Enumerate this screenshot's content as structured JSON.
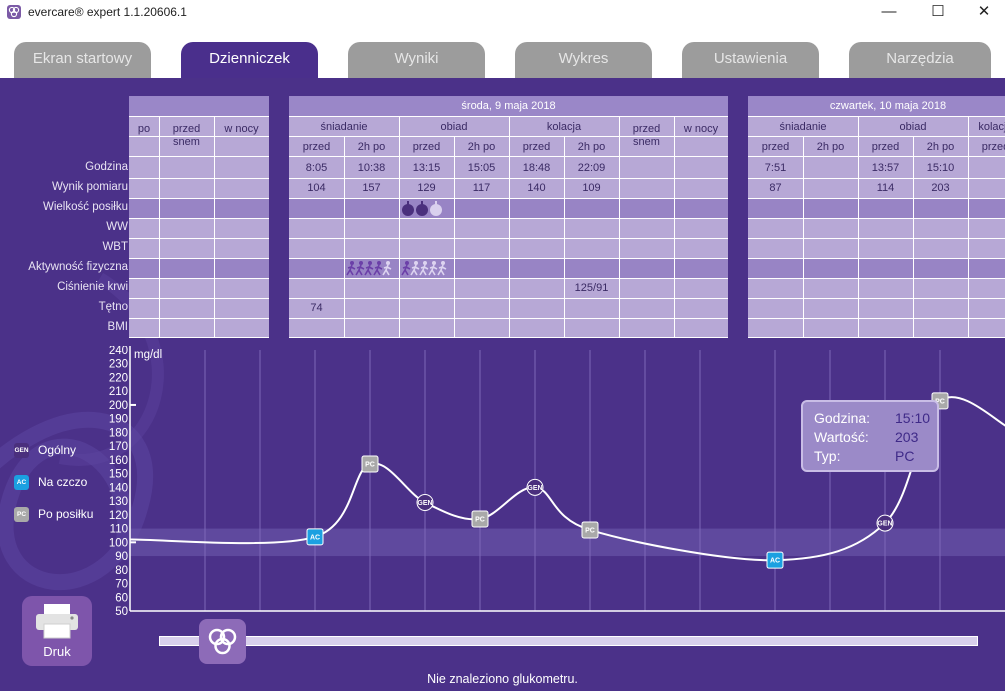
{
  "window": {
    "title": "evercare® expert 1.1.20606.1",
    "minimize_glyph": "—",
    "maximize_glyph": "☐",
    "close_glyph": "✕"
  },
  "tabs": [
    {
      "label": "Ekran startowy",
      "active": false
    },
    {
      "label": "Dzienniczek",
      "active": true
    },
    {
      "label": "Wyniki",
      "active": false
    },
    {
      "label": "Wykres",
      "active": false
    },
    {
      "label": "Ustawienia",
      "active": false
    },
    {
      "label": "Narzędzia",
      "active": false
    }
  ],
  "row_labels": [
    "Godzina",
    "Wynik pomiaru",
    "Wielkość posiłku",
    "WW",
    "WBT",
    "Aktywność fizyczna",
    "Ciśnienie krwi",
    "Tętno",
    "BMI"
  ],
  "days": [
    {
      "date": "",
      "columns": [
        {
          "group": "",
          "sub": "po"
        },
        {
          "group": "",
          "sub": "przed snem"
        },
        {
          "group": "",
          "sub": "w nocy"
        }
      ],
      "godzina": [
        "",
        "",
        ""
      ],
      "wynik": [
        "",
        "",
        ""
      ],
      "cisnienie": [
        "",
        "",
        ""
      ],
      "tetno": [
        "",
        "",
        ""
      ]
    },
    {
      "date": "środa, 9 maja 2018",
      "columns": [
        {
          "group": "śniadanie",
          "sub": "przed"
        },
        {
          "group": "śniadanie",
          "sub": "2h po"
        },
        {
          "group": "obiad",
          "sub": "przed"
        },
        {
          "group": "obiad",
          "sub": "2h po"
        },
        {
          "group": "kolacja",
          "sub": "przed"
        },
        {
          "group": "kolacja",
          "sub": "2h po"
        },
        {
          "group": "",
          "sub": "przed snem"
        },
        {
          "group": "",
          "sub": "w nocy"
        }
      ],
      "godzina": [
        "8:05",
        "10:38",
        "13:15",
        "15:05",
        "18:48",
        "22:09",
        "",
        ""
      ],
      "wynik": [
        "104",
        "157",
        "129",
        "117",
        "140",
        "109",
        "",
        ""
      ],
      "cisnienie": [
        "",
        "",
        "",
        "",
        "",
        "125/91",
        "",
        ""
      ],
      "tetno": [
        "74",
        "",
        "",
        "",
        "",
        "",
        "",
        ""
      ]
    },
    {
      "date": "czwartek, 10 maja 2018",
      "columns": [
        {
          "group": "śniadanie",
          "sub": "przed"
        },
        {
          "group": "śniadanie",
          "sub": "2h po"
        },
        {
          "group": "obiad",
          "sub": "przed"
        },
        {
          "group": "obiad",
          "sub": "2h po"
        },
        {
          "group": "kolacja",
          "sub": "przed"
        }
      ],
      "godzina": [
        "7:51",
        "",
        "13:57",
        "15:10",
        ""
      ],
      "wynik": [
        "87",
        "",
        "114",
        "203",
        ""
      ],
      "cisnienie": [
        "",
        "",
        "",
        "",
        ""
      ],
      "tetno": [
        "",
        "",
        "",
        "",
        ""
      ]
    }
  ],
  "meal_icons": {
    "size_filled": 2,
    "size_empty": 1
  },
  "activity_icons": [
    {
      "filled": 4,
      "empty": 1
    },
    {
      "filled": 1,
      "empty": 4
    }
  ],
  "chart_data": {
    "type": "line",
    "unit_label": "mg/dl",
    "y_ticks": [
      50,
      60,
      70,
      80,
      90,
      100,
      110,
      120,
      130,
      140,
      150,
      160,
      170,
      180,
      190,
      200,
      210,
      220,
      230,
      240
    ],
    "ylim": [
      50,
      240
    ],
    "target_range": [
      90,
      110
    ],
    "points": [
      {
        "time": "środa 8:05",
        "value": 104,
        "type": "AC"
      },
      {
        "time": "środa 10:38",
        "value": 157,
        "type": "PC"
      },
      {
        "time": "środa 13:15",
        "value": 129,
        "type": "GEN"
      },
      {
        "time": "środa 15:05",
        "value": 117,
        "type": "PC"
      },
      {
        "time": "środa 18:48",
        "value": 140,
        "type": "GEN"
      },
      {
        "time": "środa 22:09",
        "value": 109,
        "type": "PC"
      },
      {
        "time": "czwartek 7:51",
        "value": 87,
        "type": "AC"
      },
      {
        "time": "czwartek 13:57",
        "value": 114,
        "type": "GEN"
      },
      {
        "time": "czwartek 15:10",
        "value": 203,
        "type": "PC"
      }
    ],
    "legend": [
      {
        "code": "GEN",
        "label": "Ogólny",
        "color": "#4a2f7d"
      },
      {
        "code": "AC",
        "label": "Na czczo",
        "color": "#1ba0e1"
      },
      {
        "code": "PC",
        "label": "Po posiłku",
        "color": "#a9a9a9"
      }
    ],
    "tooltip": {
      "rows": [
        {
          "label": "Godzina:",
          "value": "15:10"
        },
        {
          "label": "Wartość:",
          "value": "203"
        },
        {
          "label": "Typ:",
          "value": "PC"
        }
      ]
    }
  },
  "print_button": {
    "label": "Druk"
  },
  "status": "Nie znaleziono glukometru.",
  "colors": {
    "panel": "#4b3189",
    "table_cell": "#b7a8d6",
    "table_header": "#9a87c8",
    "active_tab": "#4a2f8c",
    "inactive_tab": "#9c9c9c",
    "ac": "#1ba0e1",
    "pc": "#a9a9a9",
    "gen": "#4a2f7d",
    "activity": "#6b3fa8"
  }
}
